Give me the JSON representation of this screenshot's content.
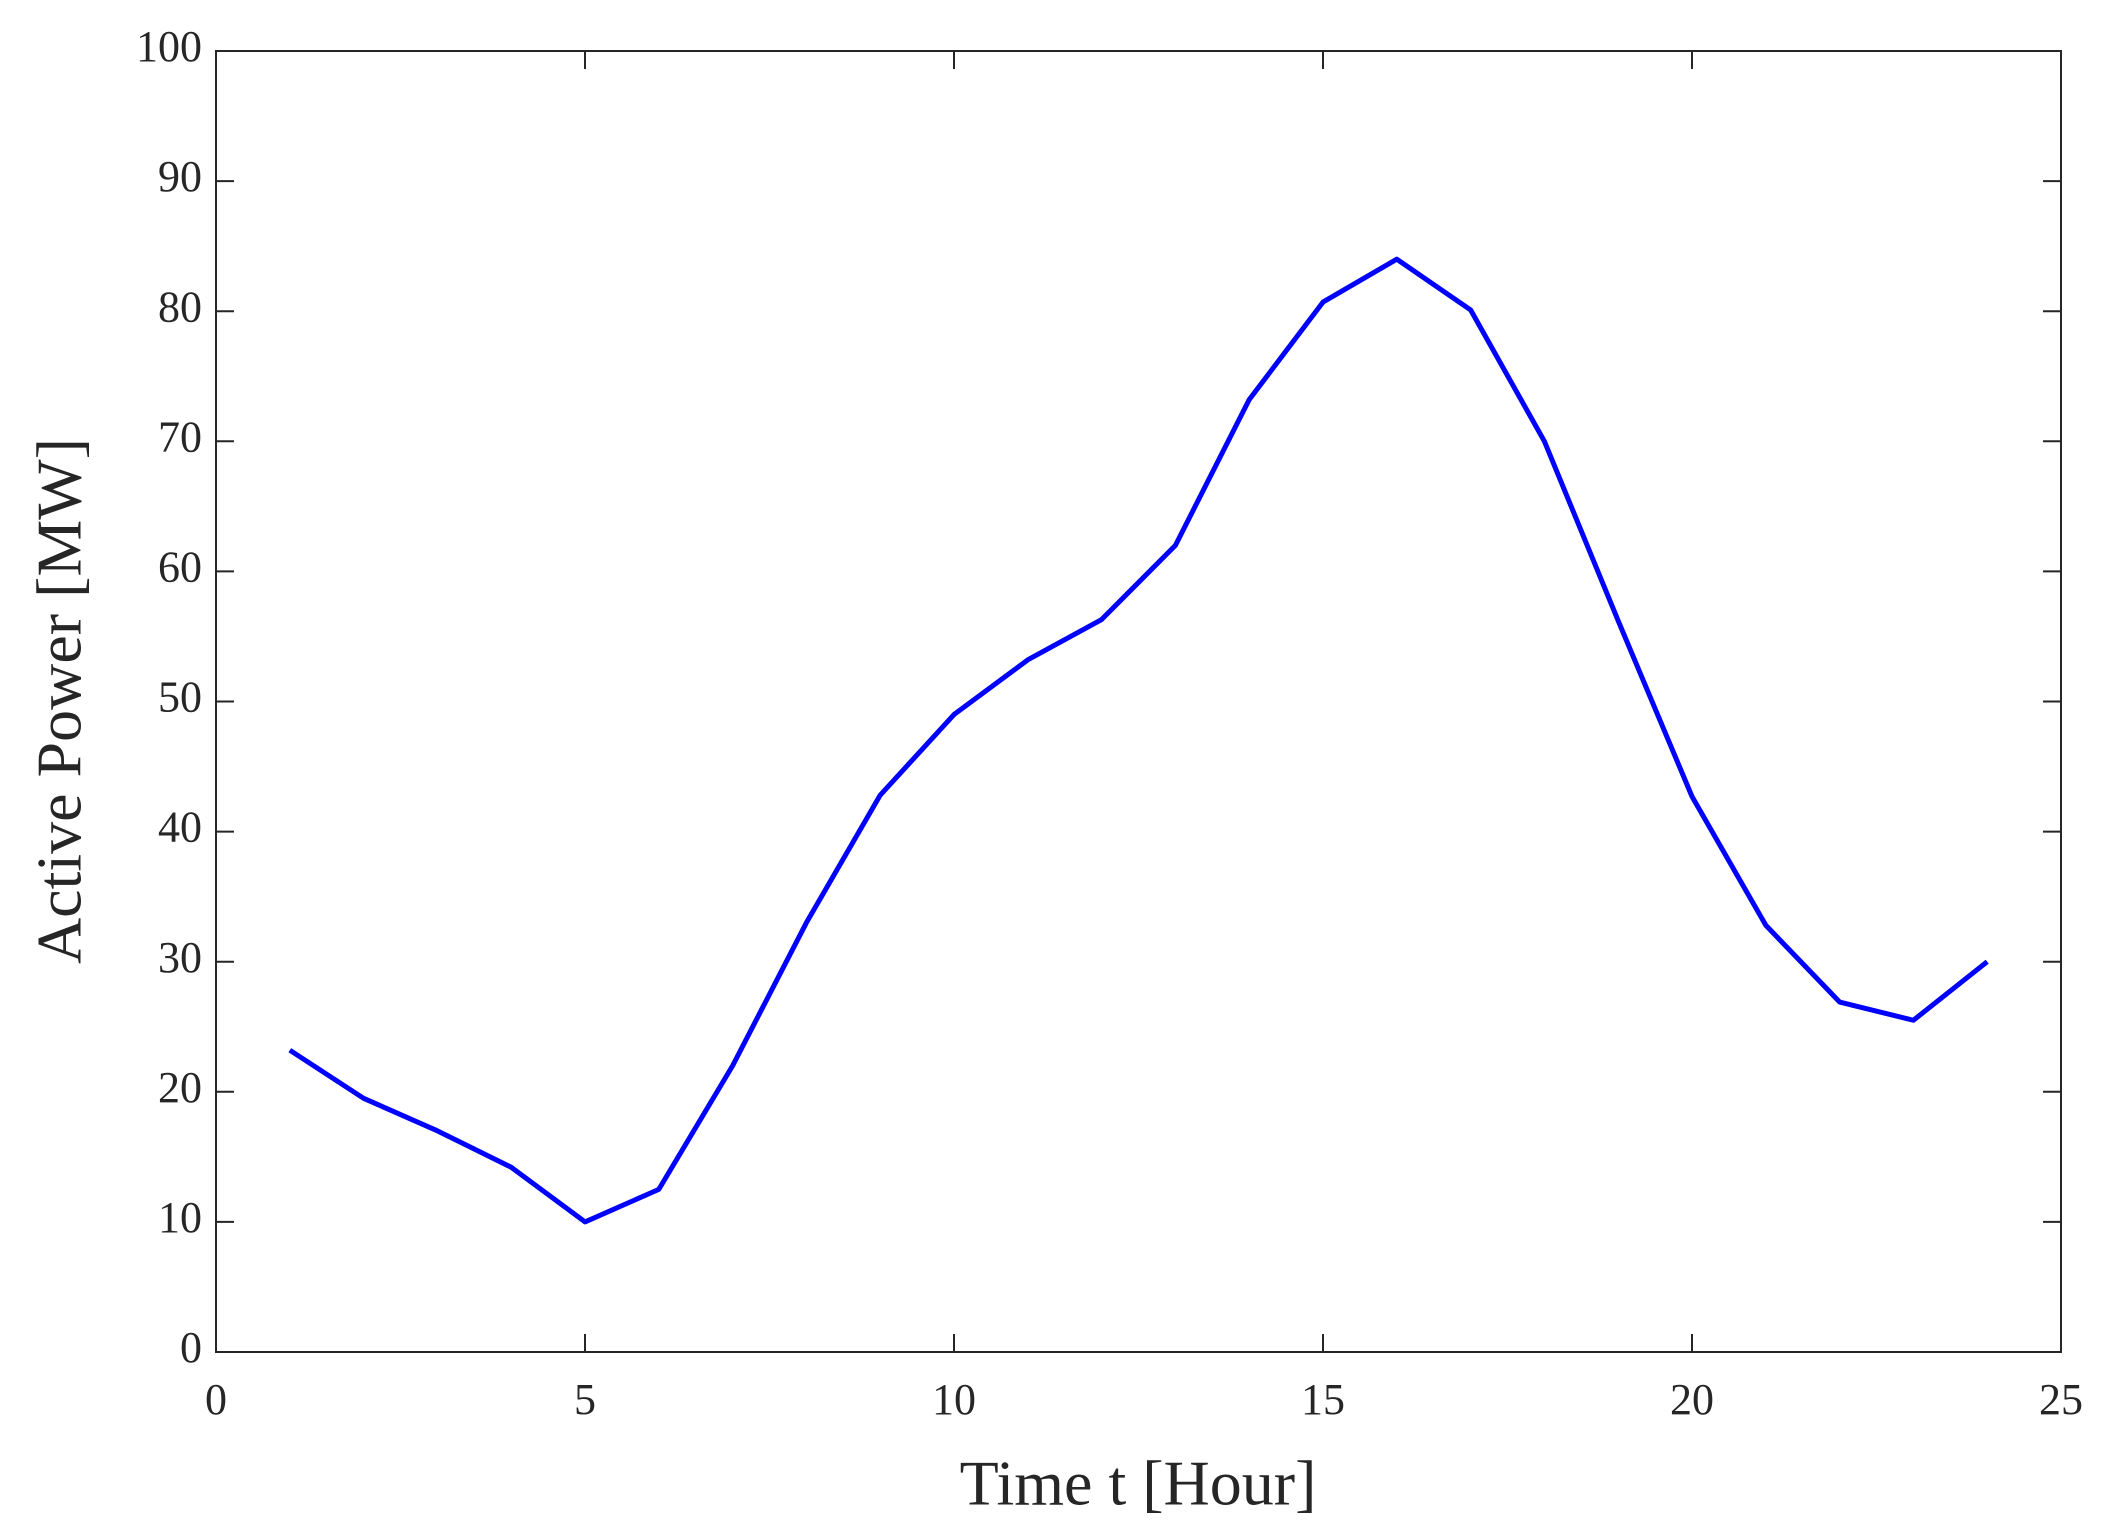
{
  "chart_data": {
    "type": "line",
    "x_label": "Time t [Hour]",
    "y_label": "Active Power [MW]",
    "x": [
      1,
      2,
      3,
      4,
      5,
      6,
      7,
      8,
      9,
      10,
      11,
      12,
      13,
      14,
      15,
      16,
      17,
      18,
      19,
      20,
      21,
      22,
      23,
      24
    ],
    "series": [
      {
        "color": "#0000ff",
        "values": [
          23.2,
          19.5,
          17.0,
          14.2,
          10.0,
          12.5,
          22.0,
          33.0,
          42.8,
          49.0,
          53.2,
          56.3,
          62.0,
          73.2,
          80.7,
          84.0,
          80.1,
          70.0,
          56.2,
          42.7,
          32.8,
          26.9,
          25.5,
          30.0
        ]
      }
    ],
    "xlim": [
      0,
      25
    ],
    "xticks": [
      0,
      5,
      10,
      15,
      20,
      25
    ],
    "ylim": [
      0,
      100
    ],
    "yticks": [
      0,
      10,
      20,
      30,
      40,
      50,
      60,
      70,
      80,
      90,
      100
    ],
    "grid": false
  }
}
